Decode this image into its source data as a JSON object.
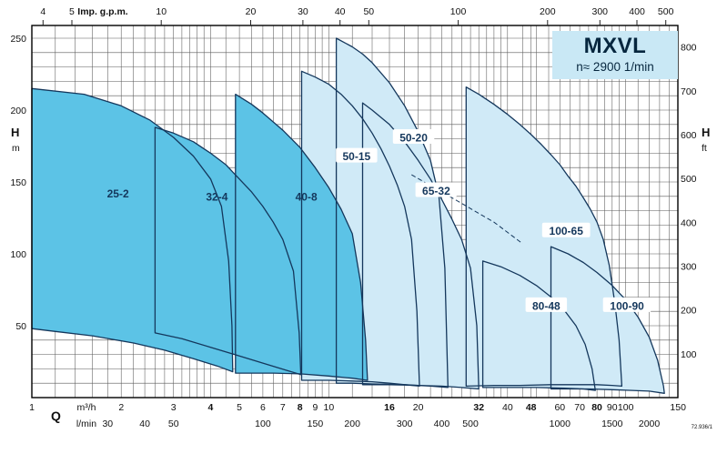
{
  "chart_data": {
    "type": "area",
    "title": "MXVL",
    "subtitle": "n≈ 2900 1/min",
    "drawing_code": "72.936/1",
    "colors": {
      "dark_fill": "#5cc3e6",
      "light_fill": "#d0eaf7",
      "outline": "#14375c",
      "title_box_bg": "#c9e8f5"
    },
    "x_axis": {
      "scale": "log",
      "q_m3h_range": [
        1,
        150
      ],
      "top_unit_label": "Imp. g.p.m.",
      "top_ticks_imp_gpm": [
        4,
        5,
        10,
        20,
        30,
        40,
        50,
        100,
        200,
        300,
        400,
        500
      ],
      "bottom_symbol": "Q",
      "bottom_unit_primary": "m³/h",
      "bottom_unit_secondary": "l/min",
      "bottom_ticks_m3h": [
        {
          "v": 1,
          "bold": false
        },
        {
          "v": 2,
          "bold": false
        },
        {
          "v": 3,
          "bold": false
        },
        {
          "v": 4,
          "bold": true
        },
        {
          "v": 5,
          "bold": false
        },
        {
          "v": 6,
          "bold": false
        },
        {
          "v": 7,
          "bold": false
        },
        {
          "v": 8,
          "bold": true
        },
        {
          "v": 9,
          "bold": false
        },
        {
          "v": 10,
          "bold": false
        },
        {
          "v": 16,
          "bold": true
        },
        {
          "v": 20,
          "bold": false
        },
        {
          "v": 32,
          "bold": true
        },
        {
          "v": 40,
          "bold": false
        },
        {
          "v": 48,
          "bold": true
        },
        {
          "v": 60,
          "bold": false
        },
        {
          "v": 70,
          "bold": false
        },
        {
          "v": 80,
          "bold": true
        },
        {
          "v": 90,
          "bold": false
        },
        {
          "v": 100,
          "bold": false
        },
        {
          "v": 150,
          "bold": false
        }
      ],
      "bottom_ticks_lmin": [
        30,
        40,
        50,
        100,
        150,
        200,
        300,
        400,
        500,
        1000,
        1500,
        2000
      ],
      "grid": "log-dense"
    },
    "y_axis": {
      "symbol": "H",
      "left_unit": "m",
      "right_unit": "ft",
      "range_m": [
        0,
        259
      ],
      "grid_step_m": 10,
      "left_ticks_m": [
        50,
        100,
        150,
        200,
        250
      ],
      "right_ticks_ft": [
        100,
        200,
        300,
        400,
        500,
        600,
        700,
        800
      ]
    },
    "dashed_curve": {
      "points": [
        [
          19,
          155
        ],
        [
          27,
          137
        ],
        [
          36,
          122
        ],
        [
          45,
          107
        ]
      ]
    },
    "regions": [
      {
        "name": "25-2",
        "shade": "dark",
        "boxed": false,
        "label": {
          "q": 1.95,
          "h": 142
        },
        "points": [
          [
            1,
            48
          ],
          [
            1,
            215
          ],
          [
            1.5,
            211
          ],
          [
            2,
            203
          ],
          [
            2.5,
            193
          ],
          [
            3,
            181
          ],
          [
            3.5,
            168
          ],
          [
            4,
            152
          ],
          [
            4.35,
            133
          ],
          [
            4.6,
            95
          ],
          [
            4.72,
            50
          ],
          [
            4.75,
            18
          ],
          [
            4.2,
            22
          ],
          [
            3.5,
            27
          ],
          [
            2.8,
            33
          ],
          [
            2.2,
            38
          ],
          [
            1.6,
            43
          ],
          [
            1.2,
            46
          ]
        ]
      },
      {
        "name": "32-4",
        "shade": "dark",
        "boxed": false,
        "label": {
          "q": 4.2,
          "h": 140
        },
        "points": [
          [
            2.6,
            45
          ],
          [
            2.6,
            188
          ],
          [
            3,
            184
          ],
          [
            3.5,
            178
          ],
          [
            4,
            170
          ],
          [
            4.5,
            162
          ],
          [
            5,
            152
          ],
          [
            5.5,
            143
          ],
          [
            6,
            133
          ],
          [
            6.5,
            122
          ],
          [
            7,
            110
          ],
          [
            7.6,
            88
          ],
          [
            7.95,
            45
          ],
          [
            8.05,
            16
          ],
          [
            7.2,
            19
          ],
          [
            6,
            24
          ],
          [
            5,
            29
          ],
          [
            4,
            35
          ],
          [
            3.2,
            41
          ]
        ]
      },
      {
        "name": "40-8",
        "shade": "dark",
        "boxed": false,
        "label": {
          "q": 8.4,
          "h": 140
        },
        "points": [
          [
            4.85,
            17
          ],
          [
            4.85,
            211
          ],
          [
            5.5,
            204
          ],
          [
            6,
            198
          ],
          [
            7,
            186
          ],
          [
            8,
            174
          ],
          [
            9,
            160
          ],
          [
            10,
            146
          ],
          [
            11,
            131
          ],
          [
            12,
            114
          ],
          [
            12.8,
            80
          ],
          [
            13.3,
            40
          ],
          [
            13.5,
            12
          ],
          [
            12,
            13.5
          ],
          [
            10,
            15
          ],
          [
            8,
            16.5
          ],
          [
            6.5,
            17
          ],
          [
            5.5,
            17
          ]
        ]
      },
      {
        "name": "50-15",
        "shade": "light",
        "boxed": true,
        "label": {
          "q": 12.4,
          "h": 168
        },
        "points": [
          [
            8.1,
            12
          ],
          [
            8.1,
            227
          ],
          [
            9,
            223
          ],
          [
            10,
            218
          ],
          [
            11,
            211
          ],
          [
            12,
            203
          ],
          [
            13,
            194
          ],
          [
            14,
            184
          ],
          [
            15,
            173
          ],
          [
            16,
            161
          ],
          [
            17,
            148
          ],
          [
            18,
            133
          ],
          [
            19,
            110
          ],
          [
            19.8,
            60
          ],
          [
            20.2,
            8
          ],
          [
            18,
            9
          ],
          [
            16,
            10
          ],
          [
            14,
            11
          ],
          [
            12,
            11.5
          ],
          [
            10,
            12
          ],
          [
            9,
            12
          ]
        ]
      },
      {
        "name": "50-20",
        "shade": "light",
        "boxed": true,
        "label": {
          "q": 19.3,
          "h": 181
        },
        "points": [
          [
            10.6,
            10
          ],
          [
            10.6,
            250
          ],
          [
            12,
            244
          ],
          [
            13,
            239
          ],
          [
            14,
            233
          ],
          [
            16,
            219
          ],
          [
            18,
            203
          ],
          [
            20,
            185
          ],
          [
            22,
            165
          ],
          [
            23.5,
            140
          ],
          [
            24.6,
            90
          ],
          [
            25.2,
            7
          ],
          [
            22,
            8
          ],
          [
            18,
            9
          ],
          [
            14,
            9.5
          ],
          [
            12,
            10
          ],
          [
            11,
            10
          ]
        ]
      },
      {
        "name": "65-32",
        "shade": "light",
        "boxed": true,
        "label": {
          "q": 23,
          "h": 144
        },
        "points": [
          [
            13,
            9
          ],
          [
            13,
            205
          ],
          [
            14,
            200
          ],
          [
            16,
            190
          ],
          [
            18,
            178
          ],
          [
            20,
            165
          ],
          [
            22,
            152
          ],
          [
            24,
            138
          ],
          [
            26,
            124
          ],
          [
            28,
            110
          ],
          [
            30,
            90
          ],
          [
            31.5,
            50
          ],
          [
            32,
            6
          ],
          [
            28,
            7
          ],
          [
            24,
            8
          ],
          [
            20,
            8.5
          ],
          [
            16,
            9
          ]
        ]
      },
      {
        "name": "100-65",
        "shade": "light",
        "boxed": true,
        "label": {
          "q": 63,
          "h": 116
        },
        "points": [
          [
            29,
            8
          ],
          [
            29,
            216
          ],
          [
            32,
            211
          ],
          [
            36,
            204
          ],
          [
            40,
            197
          ],
          [
            44,
            190
          ],
          [
            48,
            183
          ],
          [
            52,
            176
          ],
          [
            56,
            169
          ],
          [
            60,
            162
          ],
          [
            64,
            154
          ],
          [
            68,
            147
          ],
          [
            72,
            139
          ],
          [
            76,
            131
          ],
          [
            80,
            122
          ],
          [
            84,
            110
          ],
          [
            88,
            92
          ],
          [
            92,
            65
          ],
          [
            95,
            40
          ],
          [
            97,
            8
          ],
          [
            90,
            8.5
          ],
          [
            80,
            9
          ],
          [
            68,
            9
          ],
          [
            56,
            9
          ],
          [
            44,
            8.5
          ],
          [
            36,
            8.5
          ]
        ]
      },
      {
        "name": "80-48",
        "shade": "light",
        "boxed": true,
        "label": {
          "q": 54,
          "h": 64
        },
        "points": [
          [
            33,
            7
          ],
          [
            33,
            95
          ],
          [
            38,
            91
          ],
          [
            44,
            85
          ],
          [
            50,
            78
          ],
          [
            56,
            70
          ],
          [
            62,
            61
          ],
          [
            68,
            50
          ],
          [
            73,
            37
          ],
          [
            77,
            20
          ],
          [
            79,
            5
          ],
          [
            72,
            6
          ],
          [
            62,
            6.5
          ],
          [
            50,
            7
          ],
          [
            40,
            7
          ]
        ]
      },
      {
        "name": "100-90",
        "shade": "light",
        "boxed": true,
        "label": {
          "q": 101,
          "h": 64
        },
        "points": [
          [
            56,
            6
          ],
          [
            56,
            105
          ],
          [
            64,
            100
          ],
          [
            72,
            94
          ],
          [
            80,
            87
          ],
          [
            90,
            78
          ],
          [
            100,
            68
          ],
          [
            110,
            56
          ],
          [
            120,
            42
          ],
          [
            128,
            26
          ],
          [
            134,
            8
          ],
          [
            135,
            3
          ],
          [
            120,
            4.5
          ],
          [
            105,
            5
          ],
          [
            90,
            5.5
          ],
          [
            75,
            6
          ],
          [
            64,
            6
          ]
        ]
      }
    ]
  }
}
